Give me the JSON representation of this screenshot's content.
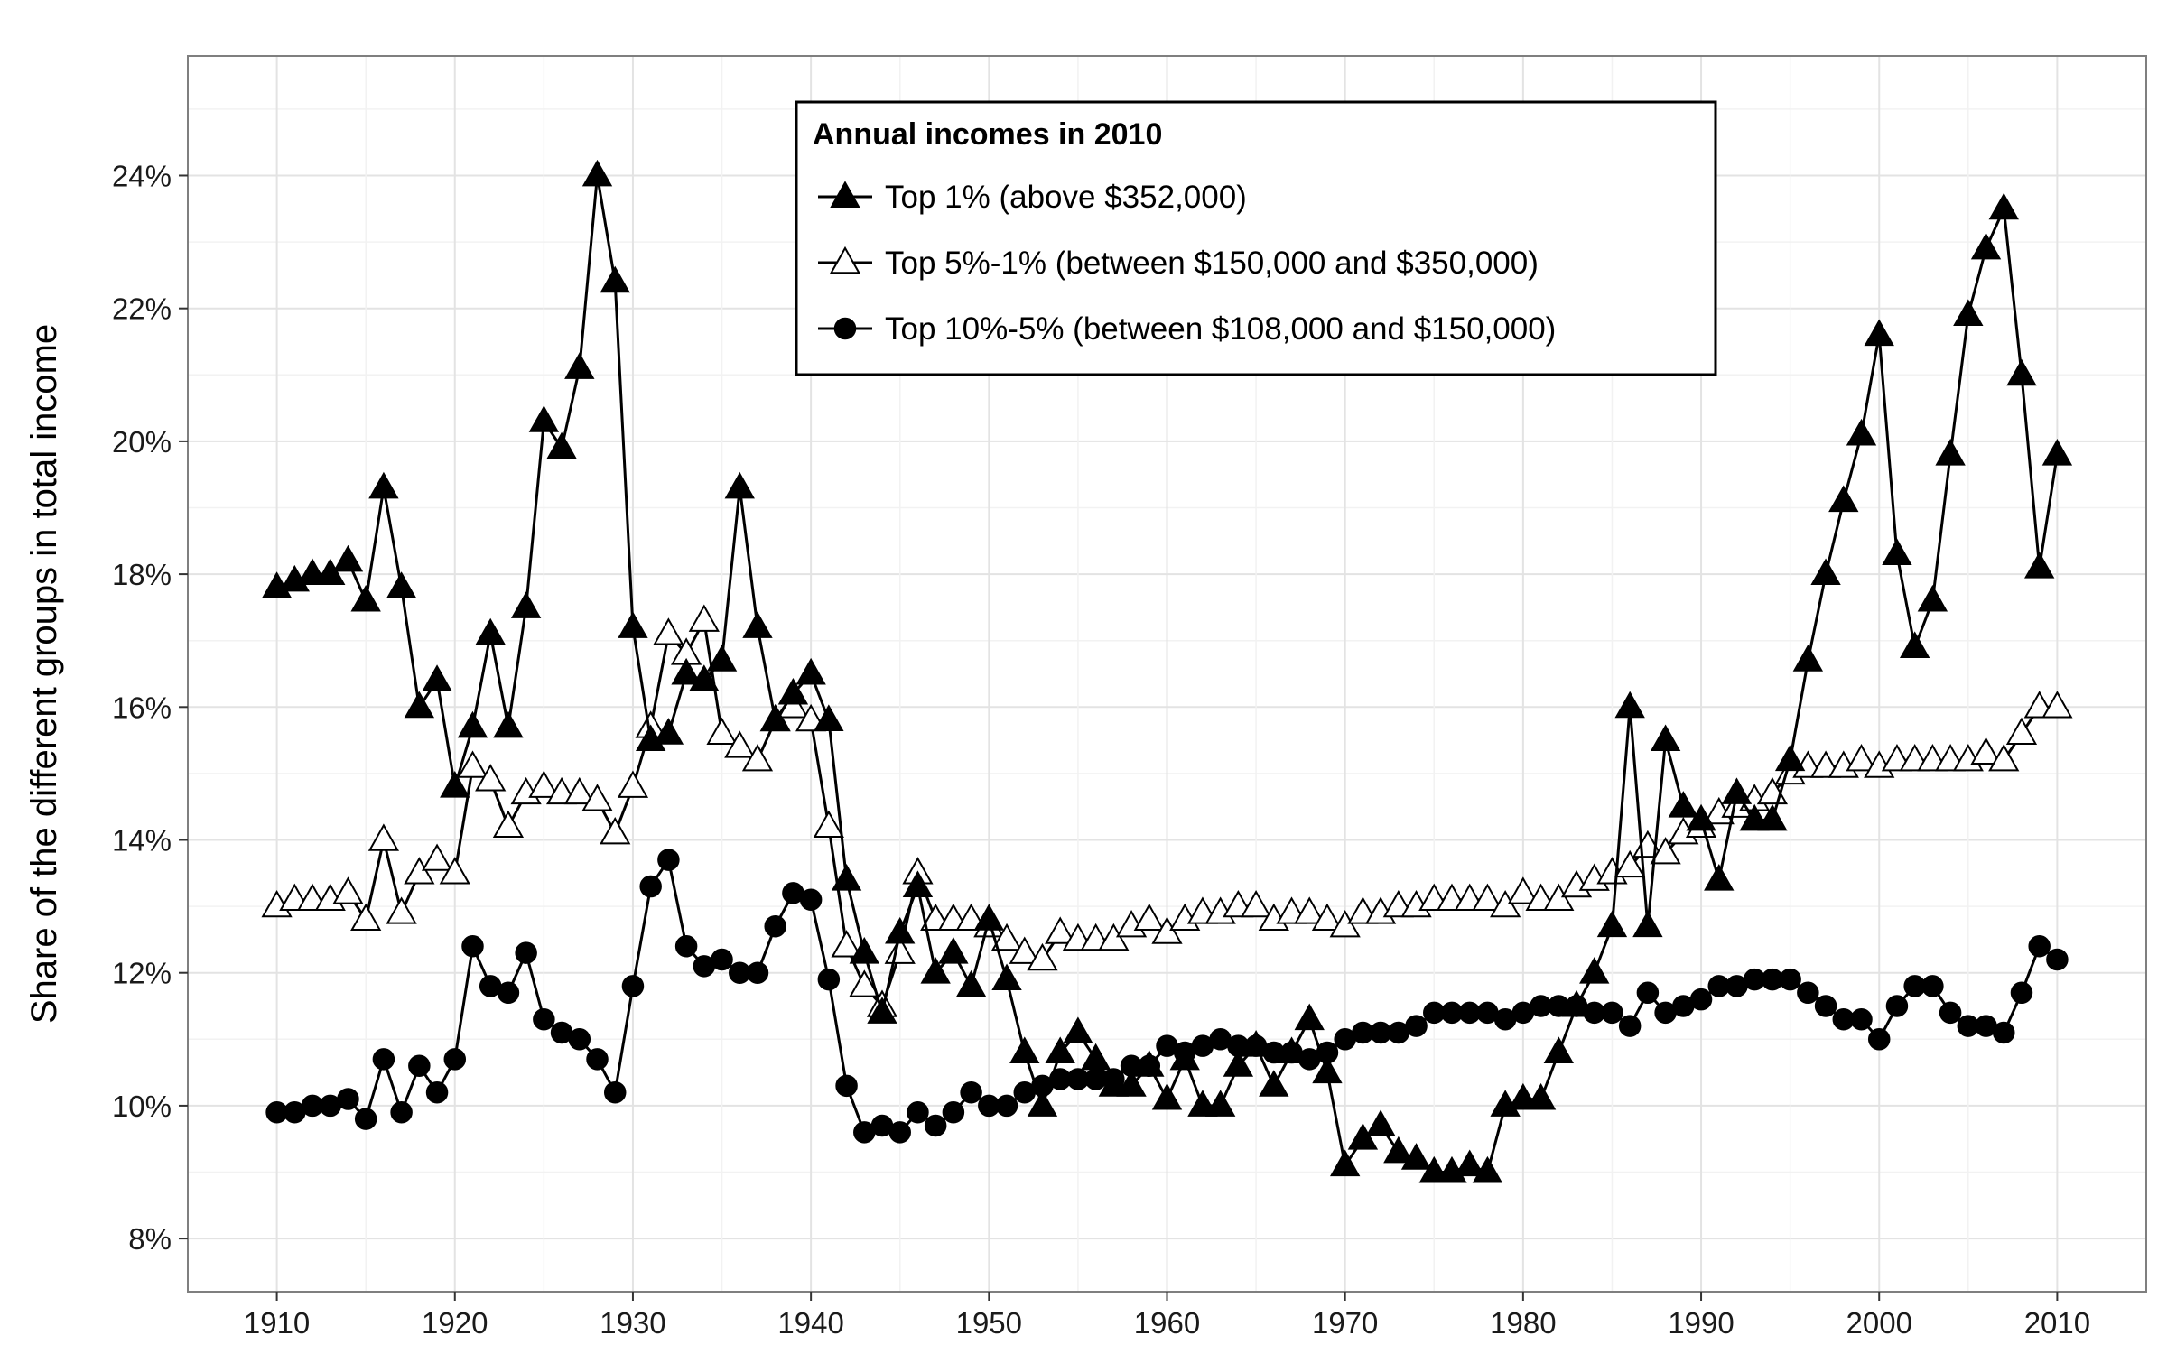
{
  "chart_data": {
    "type": "line",
    "ylabel": "Share of the different groups in total income",
    "xlabel": "",
    "xlim": [
      1905,
      2015
    ],
    "ylim": [
      7.2,
      25.8
    ],
    "x_ticks": [
      1910,
      1920,
      1930,
      1940,
      1950,
      1960,
      1970,
      1980,
      1990,
      2000,
      2010
    ],
    "x_tick_labels": [
      "1910",
      "1920",
      "1930",
      "1940",
      "1950",
      "1960",
      "1970",
      "1980",
      "1990",
      "2000",
      "2010"
    ],
    "y_ticks": [
      8,
      10,
      12,
      14,
      16,
      18,
      20,
      22,
      24
    ],
    "y_tick_labels": [
      "8%",
      "10%",
      "12%",
      "14%",
      "16%",
      "18%",
      "20%",
      "22%",
      "24%"
    ],
    "grid": true,
    "legend": {
      "title": "Annual incomes in 2010",
      "placement": "top-center"
    },
    "x": [
      1910,
      1911,
      1912,
      1913,
      1914,
      1915,
      1916,
      1917,
      1918,
      1919,
      1920,
      1921,
      1922,
      1923,
      1924,
      1925,
      1926,
      1927,
      1928,
      1929,
      1930,
      1931,
      1932,
      1933,
      1934,
      1935,
      1936,
      1937,
      1938,
      1939,
      1940,
      1941,
      1942,
      1943,
      1944,
      1945,
      1946,
      1947,
      1948,
      1949,
      1950,
      1951,
      1952,
      1953,
      1954,
      1955,
      1956,
      1957,
      1958,
      1959,
      1960,
      1961,
      1962,
      1963,
      1964,
      1965,
      1966,
      1967,
      1968,
      1969,
      1970,
      1971,
      1972,
      1973,
      1974,
      1975,
      1976,
      1977,
      1978,
      1979,
      1980,
      1981,
      1982,
      1983,
      1984,
      1985,
      1986,
      1987,
      1988,
      1989,
      1990,
      1991,
      1992,
      1993,
      1994,
      1995,
      1996,
      1997,
      1998,
      1999,
      2000,
      2001,
      2002,
      2003,
      2004,
      2005,
      2006,
      2007,
      2008,
      2009,
      2010
    ],
    "series": [
      {
        "name": "Top 1% (above $352,000)",
        "marker": "filled-triangle",
        "values": [
          17.8,
          17.9,
          18.0,
          18.0,
          18.2,
          17.6,
          19.3,
          17.8,
          16.0,
          16.4,
          14.8,
          15.7,
          17.1,
          15.7,
          17.5,
          20.3,
          19.9,
          21.1,
          24.0,
          22.4,
          17.2,
          15.5,
          15.6,
          16.5,
          16.4,
          16.7,
          19.3,
          17.2,
          15.8,
          16.2,
          16.5,
          15.8,
          13.4,
          12.3,
          11.4,
          12.6,
          13.3,
          12.0,
          12.3,
          11.8,
          12.8,
          11.9,
          10.8,
          10.0,
          10.8,
          11.1,
          10.7,
          10.3,
          10.3,
          10.6,
          10.1,
          10.7,
          10.0,
          10.0,
          10.6,
          10.9,
          10.3,
          10.8,
          11.3,
          10.5,
          9.1,
          9.5,
          9.7,
          9.3,
          9.2,
          9.0,
          9.0,
          9.1,
          9.0,
          10.0,
          10.1,
          10.1,
          10.8,
          11.5,
          12.0,
          12.7,
          16.0,
          12.7,
          15.5,
          14.5,
          14.3,
          13.4,
          14.7,
          14.3,
          14.3,
          15.2,
          16.7,
          18.0,
          19.1,
          20.1,
          21.6,
          18.3,
          16.9,
          17.6,
          19.8,
          21.9,
          22.9,
          23.5,
          21.0,
          18.1,
          19.8
        ]
      },
      {
        "name": "Top 5%-1% (between $150,000 and $350,000)",
        "marker": "open-triangle",
        "values": [
          13.0,
          13.1,
          13.1,
          13.1,
          13.2,
          12.8,
          14.0,
          12.9,
          13.5,
          13.7,
          13.5,
          15.1,
          14.9,
          14.2,
          14.7,
          14.8,
          14.7,
          14.7,
          14.6,
          14.1,
          14.8,
          15.7,
          17.1,
          16.8,
          17.3,
          15.6,
          15.4,
          15.2,
          15.8,
          16.0,
          15.8,
          14.2,
          12.4,
          11.8,
          11.5,
          12.3,
          13.5,
          12.8,
          12.8,
          12.8,
          12.7,
          12.5,
          12.3,
          12.2,
          12.6,
          12.5,
          12.5,
          12.5,
          12.7,
          12.8,
          12.6,
          12.8,
          12.9,
          12.9,
          13.0,
          13.0,
          12.8,
          12.9,
          12.9,
          12.8,
          12.7,
          12.9,
          12.9,
          13.0,
          13.0,
          13.1,
          13.1,
          13.1,
          13.1,
          13.0,
          13.2,
          13.1,
          13.1,
          13.3,
          13.4,
          13.5,
          13.6,
          13.9,
          13.8,
          14.1,
          14.2,
          14.4,
          14.5,
          14.6,
          14.7,
          15.0,
          15.1,
          15.1,
          15.1,
          15.2,
          15.1,
          15.2,
          15.2,
          15.2,
          15.2,
          15.2,
          15.3,
          15.2,
          15.6,
          16.0,
          16.0
        ]
      },
      {
        "name": "Top 10%-5% (between $108,000 and $150,000)",
        "marker": "filled-circle",
        "values": [
          9.9,
          9.9,
          10.0,
          10.0,
          10.1,
          9.8,
          10.7,
          9.9,
          10.6,
          10.2,
          10.7,
          12.4,
          11.8,
          11.7,
          12.3,
          11.3,
          11.1,
          11.0,
          10.7,
          10.2,
          11.8,
          13.3,
          13.7,
          12.4,
          12.1,
          12.2,
          12.0,
          12.0,
          12.7,
          13.2,
          13.1,
          11.9,
          10.3,
          9.6,
          9.7,
          9.6,
          9.9,
          9.7,
          9.9,
          10.2,
          10.0,
          10.0,
          10.2,
          10.3,
          10.4,
          10.4,
          10.4,
          10.4,
          10.6,
          10.6,
          10.9,
          10.8,
          10.9,
          11.0,
          10.9,
          10.9,
          10.8,
          10.8,
          10.7,
          10.8,
          11.0,
          11.1,
          11.1,
          11.1,
          11.2,
          11.4,
          11.4,
          11.4,
          11.4,
          11.3,
          11.4,
          11.5,
          11.5,
          11.5,
          11.4,
          11.4,
          11.2,
          11.7,
          11.4,
          11.5,
          11.6,
          11.8,
          11.8,
          11.9,
          11.9,
          11.9,
          11.7,
          11.5,
          11.3,
          11.3,
          11.0,
          11.5,
          11.8,
          11.8,
          11.4,
          11.2,
          11.2,
          11.1,
          11.7,
          12.4,
          12.2
        ]
      }
    ]
  }
}
